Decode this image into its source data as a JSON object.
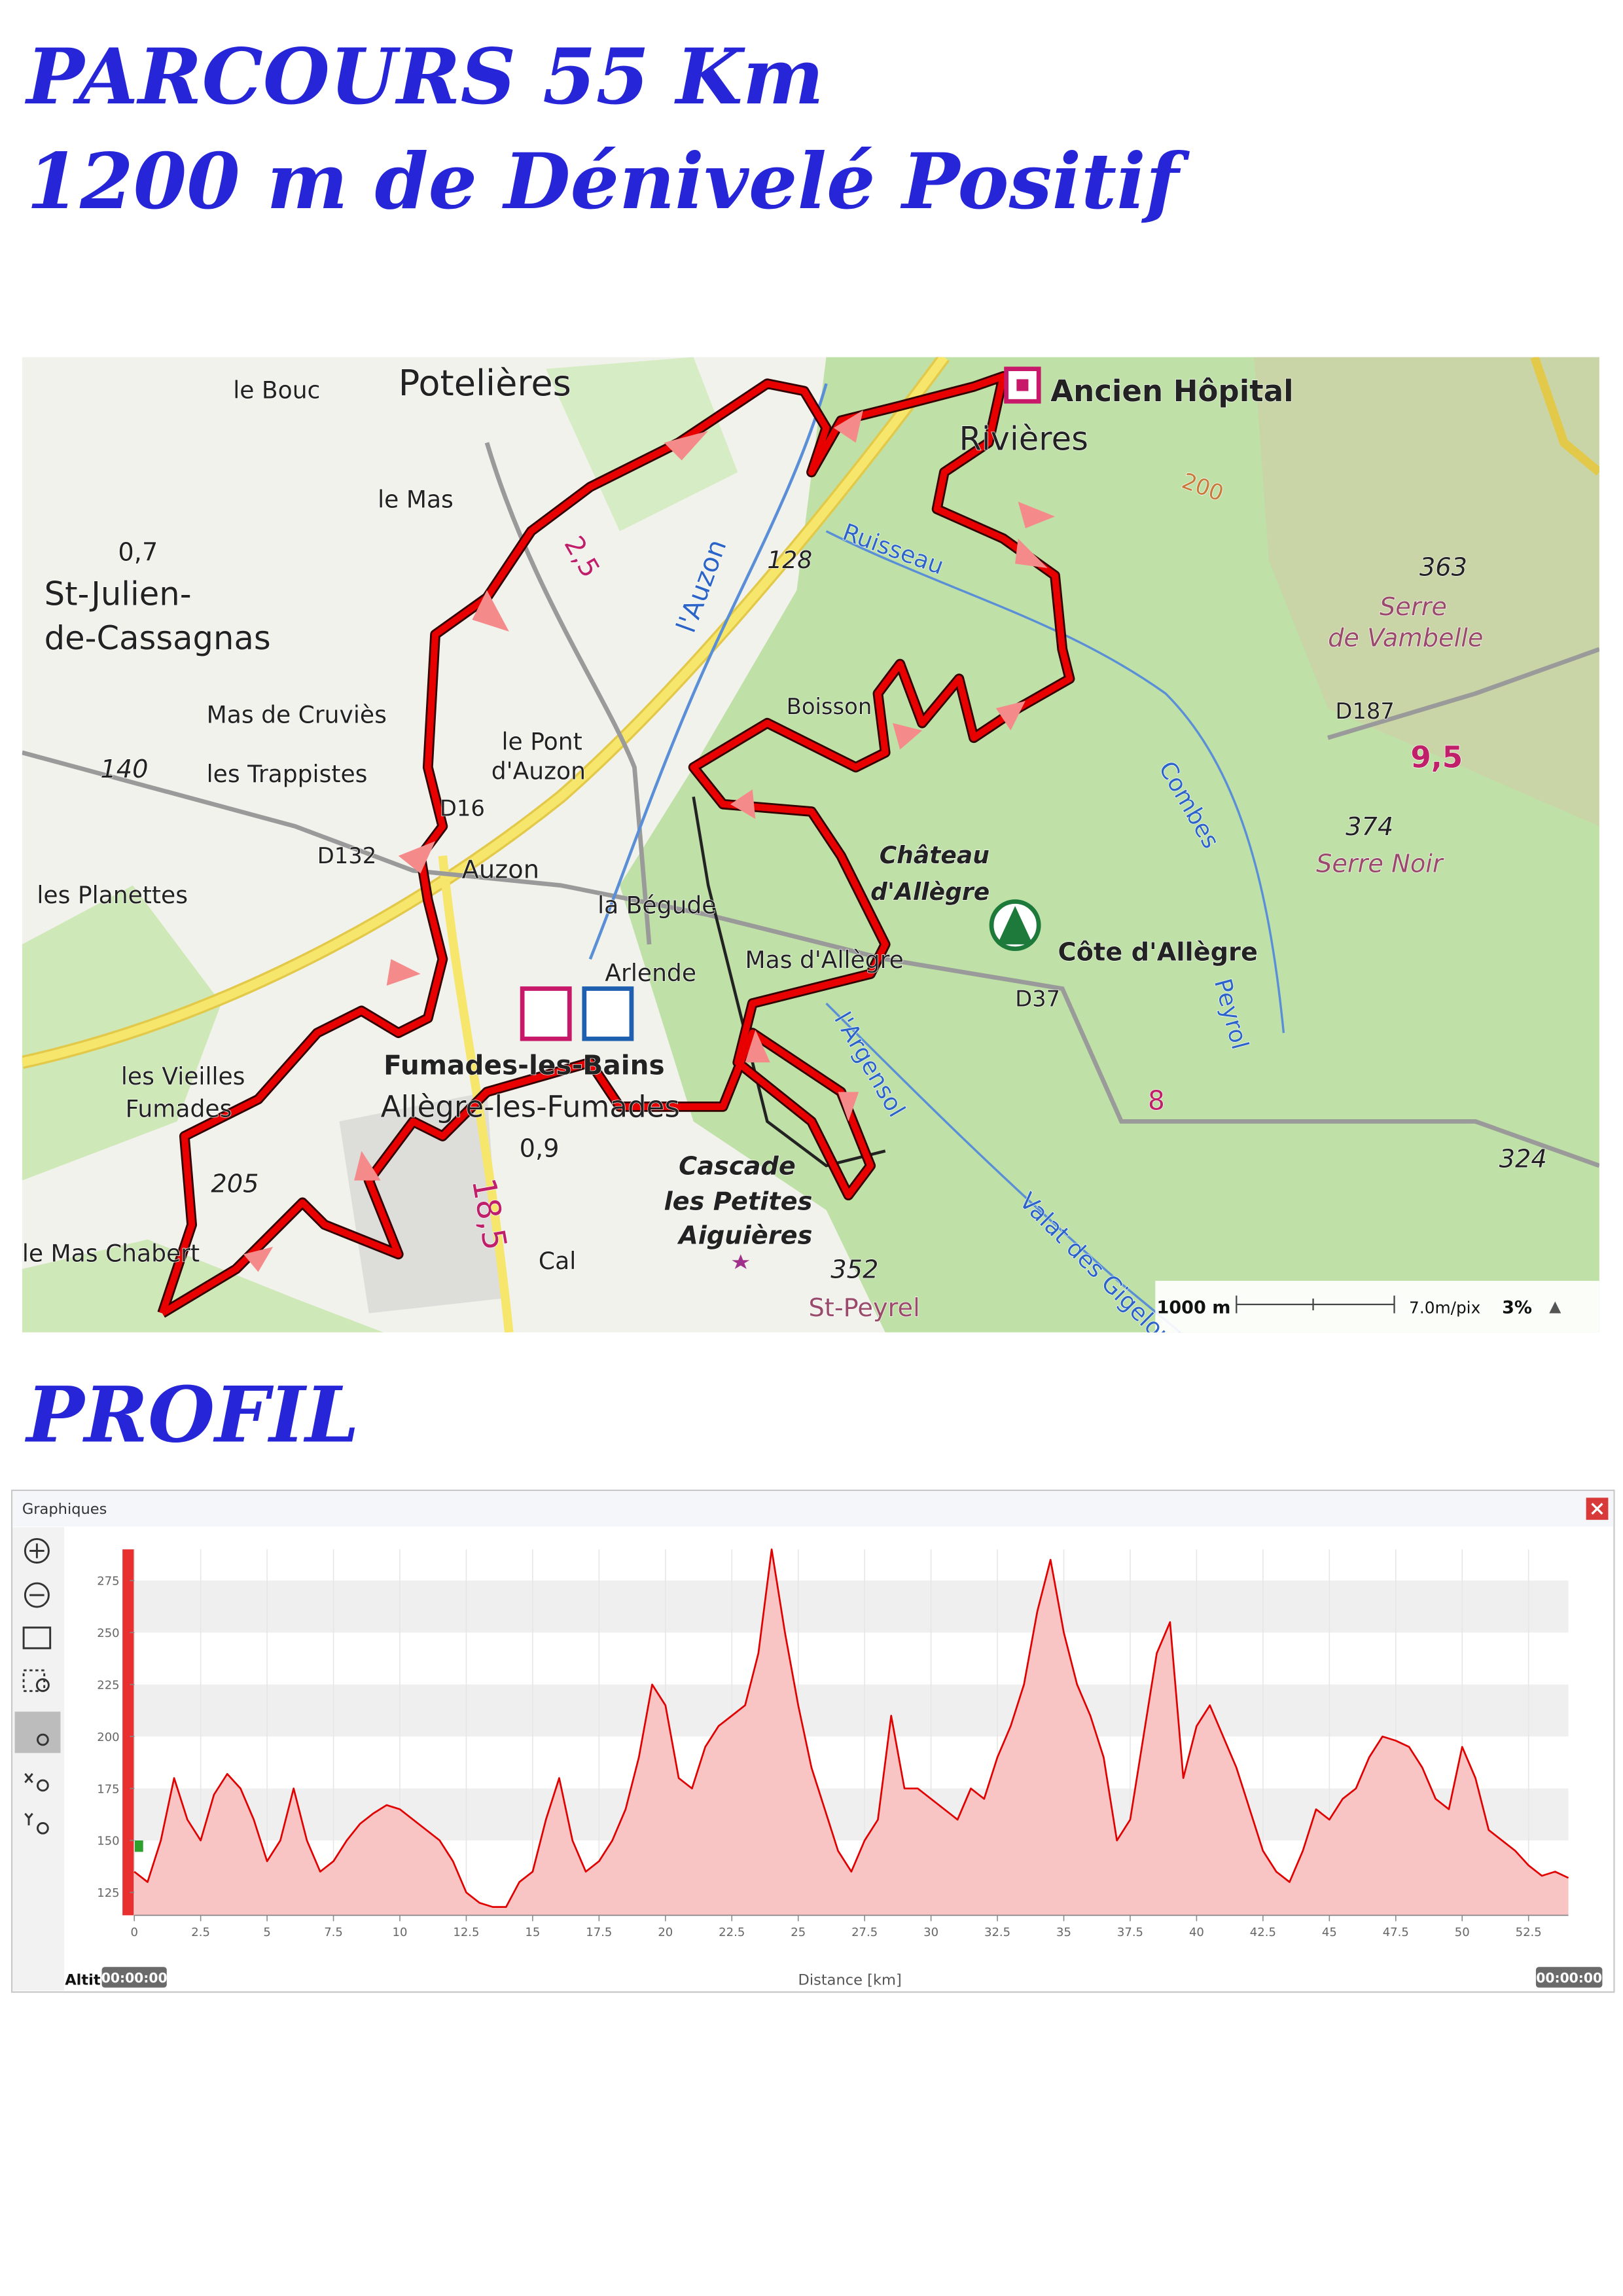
{
  "title": [
    "PARCOURS 55 Km",
    "1200 m de Dénivelé Positif"
  ],
  "map": {
    "labels": [
      "le Bouc",
      "Potelières",
      "le Mas",
      "0,7",
      "St-Julien-",
      "de-Cassagnas",
      "Mas de Cruviès",
      "les Trappistes",
      "140",
      "les Planettes",
      "D132",
      "D16",
      "Auzon",
      "le Pont",
      "d'Auzon",
      "l'Auzon",
      "128",
      "Boisson",
      "Ancien Hôpital",
      "Rivières",
      "Ruisseau",
      "363",
      "Serre",
      "de Vambelle",
      "D187",
      "9,5",
      "374",
      "Serre Noir",
      "Château",
      "d'Allègre",
      "Côte d'Allègre",
      "D37",
      "la Bégude",
      "Mas d'Allègre",
      "Arlende",
      "les Vieilles",
      "Fumades",
      "Fumades-les-Bains",
      "Allègre-les-Fumades",
      "0,9",
      "18,5",
      "205",
      "le Mas Chabert",
      "Cascade",
      "les Petites",
      "Aiguières",
      "352",
      "St-Peyrel",
      "324",
      "8",
      "l'Argensol",
      "Peyrol",
      "Valat des Gigelous",
      "Combes",
      "2,5",
      "200",
      "Cal"
    ],
    "scale": "1000 m",
    "resolution": "7.0m/pix",
    "zoom": "3%"
  },
  "profile_heading": "PROFIL",
  "window": {
    "title": "Graphiques"
  },
  "chart_data": {
    "type": "area",
    "x_label": "Distance [km]",
    "y_label": "Altit",
    "time_start": "00:00:00",
    "time_end": "00:00:00",
    "x": [
      0,
      0.5,
      1,
      1.5,
      2,
      2.5,
      3,
      3.5,
      4,
      4.5,
      5,
      5.5,
      6,
      6.5,
      7,
      7.5,
      8,
      8.5,
      9,
      9.5,
      10,
      10.5,
      11,
      11.5,
      12,
      12.5,
      13,
      13.5,
      14,
      14.5,
      15,
      15.5,
      16,
      16.5,
      17,
      17.5,
      18,
      18.5,
      19,
      19.5,
      20,
      20.5,
      21,
      21.5,
      22,
      22.5,
      23,
      23.5,
      24,
      24.5,
      25,
      25.5,
      26,
      26.5,
      27,
      27.5,
      28,
      28.5,
      29,
      29.5,
      30,
      30.5,
      31,
      31.5,
      32,
      32.5,
      33,
      33.5,
      34,
      34.5,
      35,
      35.5,
      36,
      36.5,
      37,
      37.5,
      38,
      38.5,
      39,
      39.5,
      40,
      40.5,
      41,
      41.5,
      42,
      42.5,
      43,
      43.5,
      44,
      44.5,
      45,
      45.5,
      46,
      46.5,
      47,
      47.5,
      48,
      48.5,
      49,
      49.5,
      50,
      50.5,
      51,
      51.5,
      52,
      52.5,
      53,
      53.5,
      54
    ],
    "values": [
      135,
      130,
      150,
      180,
      160,
      150,
      172,
      182,
      175,
      160,
      140,
      150,
      175,
      150,
      135,
      140,
      150,
      158,
      163,
      167,
      165,
      160,
      155,
      150,
      140,
      125,
      120,
      118,
      118,
      130,
      135,
      160,
      180,
      150,
      135,
      140,
      150,
      165,
      190,
      225,
      215,
      180,
      175,
      195,
      205,
      210,
      215,
      240,
      290,
      250,
      215,
      185,
      165,
      145,
      135,
      150,
      160,
      210,
      175,
      175,
      170,
      165,
      160,
      175,
      170,
      190,
      205,
      225,
      260,
      285,
      250,
      225,
      210,
      190,
      150,
      160,
      200,
      240,
      255,
      180,
      205,
      215,
      200,
      185,
      165,
      145,
      135,
      130,
      145,
      165,
      160,
      170,
      175,
      190,
      200,
      198,
      195,
      185,
      170,
      165,
      195,
      180,
      155,
      150,
      145,
      138,
      133,
      135,
      132
    ],
    "color": "#e00000",
    "fill": "#f8c4c4",
    "xlim": [
      0,
      54
    ],
    "ylim": [
      114,
      290
    ],
    "xticks": [
      0,
      2.5,
      5,
      7.5,
      10,
      12.5,
      15,
      17.5,
      20,
      22.5,
      25,
      27.5,
      30,
      32.5,
      35,
      37.5,
      40,
      42.5,
      45,
      47.5,
      50,
      52.5
    ],
    "yticks": [
      125,
      150,
      175,
      200,
      225,
      250,
      275
    ],
    "grid": true
  }
}
